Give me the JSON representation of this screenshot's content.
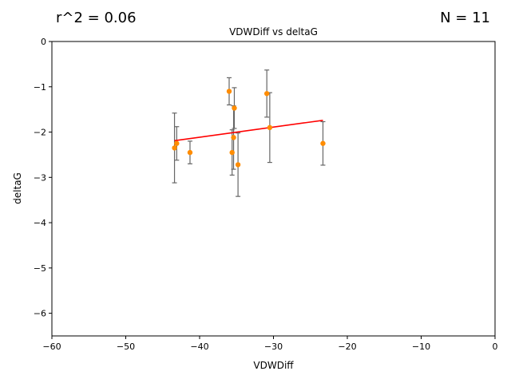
{
  "annotations": {
    "r2": "r^2 = 0.06",
    "n": "N = 11"
  },
  "chart_data": {
    "type": "scatter",
    "title": "VDWDiff vs deltaG",
    "xlabel": "VDWDiff",
    "ylabel": "deltaG",
    "xlim": [
      -60,
      0
    ],
    "ylim": [
      -6.5,
      0
    ],
    "xticks": [
      -60,
      -50,
      -40,
      -30,
      -20,
      -10,
      0
    ],
    "yticks": [
      0,
      -1,
      -2,
      -3,
      -4,
      -5,
      -6
    ],
    "grid": false,
    "colors": {
      "points": "#ff8c00",
      "fit": "#ff0000",
      "errorbars": "#666666"
    },
    "points": [
      {
        "x": -43.4,
        "y": -2.35,
        "err": 0.77
      },
      {
        "x": -43.1,
        "y": -2.25,
        "err": 0.37
      },
      {
        "x": -41.3,
        "y": -2.45,
        "err": 0.25
      },
      {
        "x": -36.0,
        "y": -1.1,
        "err": 0.3
      },
      {
        "x": -35.6,
        "y": -2.45,
        "err": 0.5
      },
      {
        "x": -35.4,
        "y": -2.12,
        "err": 0.7
      },
      {
        "x": -35.3,
        "y": -1.47,
        "err": 0.45
      },
      {
        "x": -34.8,
        "y": -2.72,
        "err": 0.7
      },
      {
        "x": -30.9,
        "y": -1.15,
        "err": 0.52
      },
      {
        "x": -30.5,
        "y": -1.9,
        "err": 0.77
      },
      {
        "x": -23.3,
        "y": -2.25,
        "err": 0.48
      }
    ],
    "fit_line": {
      "x": [
        -43.4,
        -23.3
      ],
      "y": [
        -2.19,
        -1.74
      ]
    }
  }
}
